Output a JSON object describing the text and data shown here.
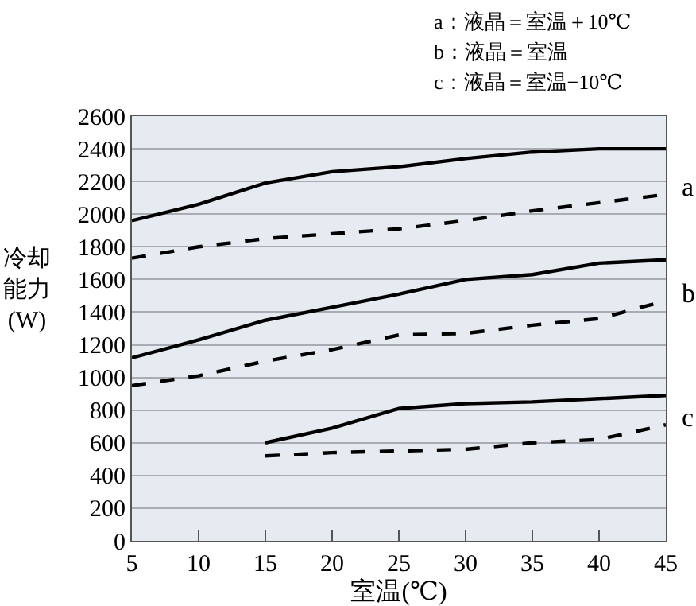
{
  "chart_data": {
    "type": "line",
    "xlabel": "室温(℃)",
    "ylabel": "冷却能力(W)",
    "xlim": [
      5,
      45
    ],
    "xticks": [
      5,
      10,
      15,
      20,
      25,
      30,
      35,
      40,
      45
    ],
    "ylim": [
      0,
      2600
    ],
    "yticks": [
      0,
      200,
      400,
      600,
      800,
      1000,
      1200,
      1400,
      1600,
      1800,
      2000,
      2200,
      2400,
      2600
    ],
    "grid": "y",
    "marker": "none",
    "series": [
      {
        "color": "#000000",
        "line_style": "solid",
        "x": [
          5,
          10,
          15,
          20,
          25,
          30,
          35,
          40,
          45
        ],
        "values": [
          1960,
          2060,
          2190,
          2260,
          2290,
          2340,
          2380,
          2400,
          2400
        ]
      },
      {
        "color": "#000000",
        "line_style": "dashed",
        "x": [
          5,
          10,
          15,
          20,
          25,
          30,
          35,
          40,
          45
        ],
        "values": [
          1730,
          1800,
          1850,
          1880,
          1910,
          1960,
          2020,
          2070,
          2120
        ]
      },
      {
        "color": "#000000",
        "line_style": "solid",
        "x": [
          5,
          10,
          15,
          20,
          25,
          30,
          35,
          40,
          45
        ],
        "values": [
          1120,
          1230,
          1350,
          1430,
          1510,
          1600,
          1630,
          1700,
          1720
        ]
      },
      {
        "color": "#000000",
        "line_style": "dashed",
        "x": [
          5,
          10,
          15,
          20,
          25,
          30,
          35,
          40,
          45
        ],
        "values": [
          950,
          1010,
          1100,
          1170,
          1260,
          1270,
          1320,
          1360,
          1470
        ]
      },
      {
        "color": "#000000",
        "line_style": "solid",
        "x": [
          15,
          20,
          25,
          30,
          35,
          40,
          45
        ],
        "values": [
          600,
          690,
          810,
          840,
          850,
          870,
          890
        ]
      },
      {
        "color": "#000000",
        "line_style": "dashed",
        "x": [
          15,
          20,
          25,
          30,
          35,
          40,
          45
        ],
        "values": [
          520,
          540,
          550,
          560,
          600,
          620,
          710
        ]
      }
    ],
    "annotations": [
      "a：液晶＝室温＋10℃",
      "b：液晶＝室温",
      "c：液晶＝室温−10℃",
      "a",
      "b",
      "c"
    ]
  }
}
